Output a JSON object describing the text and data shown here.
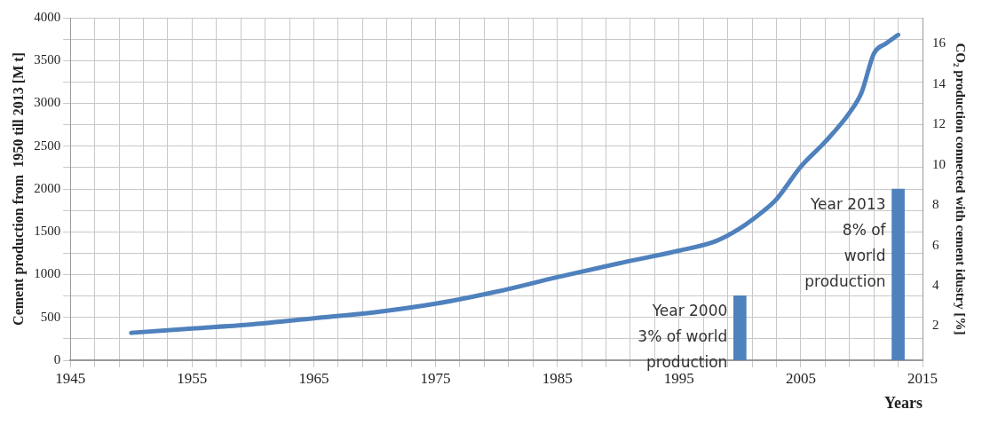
{
  "chart_data": {
    "type": "line",
    "xlabel": "Years",
    "ylabel": "Cement production from  1950 till 2013 [M t]",
    "y2label": "CO₂ production connected with cement idustry [%]",
    "xlim": [
      1945,
      2015
    ],
    "xticks": [
      1945,
      {
        "value": 1947,
        "label": null
      },
      {
        "value": 1949,
        "label": null
      },
      {
        "value": 1951,
        "label": null
      },
      {
        "value": 1953,
        "label": null
      },
      1955,
      {
        "value": 1957,
        "label": null
      },
      {
        "value": 1959,
        "label": null
      },
      {
        "value": 1961,
        "label": null
      },
      {
        "value": 1963,
        "label": null
      },
      1965,
      {
        "value": 1967,
        "label": null
      },
      {
        "value": 1969,
        "label": null
      },
      {
        "value": 1971,
        "label": null
      },
      {
        "value": 1973,
        "label": null
      },
      1975,
      {
        "value": 1977,
        "label": null
      },
      {
        "value": 1979,
        "label": null
      },
      {
        "value": 1981,
        "label": null
      },
      {
        "value": 1983,
        "label": null
      },
      1985,
      {
        "value": 1987,
        "label": null
      },
      {
        "value": 1989,
        "label": null
      },
      {
        "value": 1991,
        "label": null
      },
      {
        "value": 1993,
        "label": null
      },
      1995,
      {
        "value": 1997,
        "label": null
      },
      {
        "value": 1999,
        "label": null
      },
      {
        "value": 2001,
        "label": null
      },
      {
        "value": 2003,
        "label": null
      },
      2005,
      {
        "value": 2007,
        "label": null
      },
      {
        "value": 2009,
        "label": null
      },
      {
        "value": 2011,
        "label": null
      },
      {
        "value": 2013,
        "label": null
      },
      2015
    ],
    "ylim": [
      0,
      4000
    ],
    "yticks": [
      0,
      {
        "value": 250,
        "label": null
      },
      500,
      {
        "value": 750,
        "label": null
      },
      1000,
      {
        "value": 1250,
        "label": null
      },
      1500,
      {
        "value": 1750,
        "label": null
      },
      2000,
      {
        "value": 2250,
        "label": null
      },
      2500,
      {
        "value": 2750,
        "label": null
      },
      3000,
      {
        "value": 3250,
        "label": null
      },
      3500,
      {
        "value": 3750,
        "label": null
      },
      4000
    ],
    "y2lim": [
      0.3,
      17.3
    ],
    "y2ticks": [
      2,
      4,
      6,
      8,
      10,
      12,
      14,
      16
    ],
    "grid": true,
    "legend": false,
    "series": [
      {
        "color": "#4f81bd",
        "x": [
          1950,
          1955,
          1960,
          1965,
          1970,
          1975,
          1980,
          1985,
          1990,
          1995,
          1998,
          2000,
          2002,
          2003,
          2005,
          2007,
          2009,
          2010,
          2011,
          2012,
          2013
        ],
        "values": [
          320,
          370,
          420,
          490,
          560,
          660,
          800,
          970,
          1130,
          1280,
          1390,
          1540,
          1750,
          1880,
          2260,
          2550,
          2890,
          3130,
          3580,
          3700,
          3800
        ]
      },
      {
        "type": "bar",
        "axis": "y2",
        "color": "#4f81bd",
        "x": [
          2000,
          2013
        ],
        "values": [
          3.5,
          8.8
        ]
      }
    ],
    "annotations": [
      "Year 2000\n3% of world\nproduction",
      "Year 2013\n8% of\nworld\nproduction"
    ]
  }
}
